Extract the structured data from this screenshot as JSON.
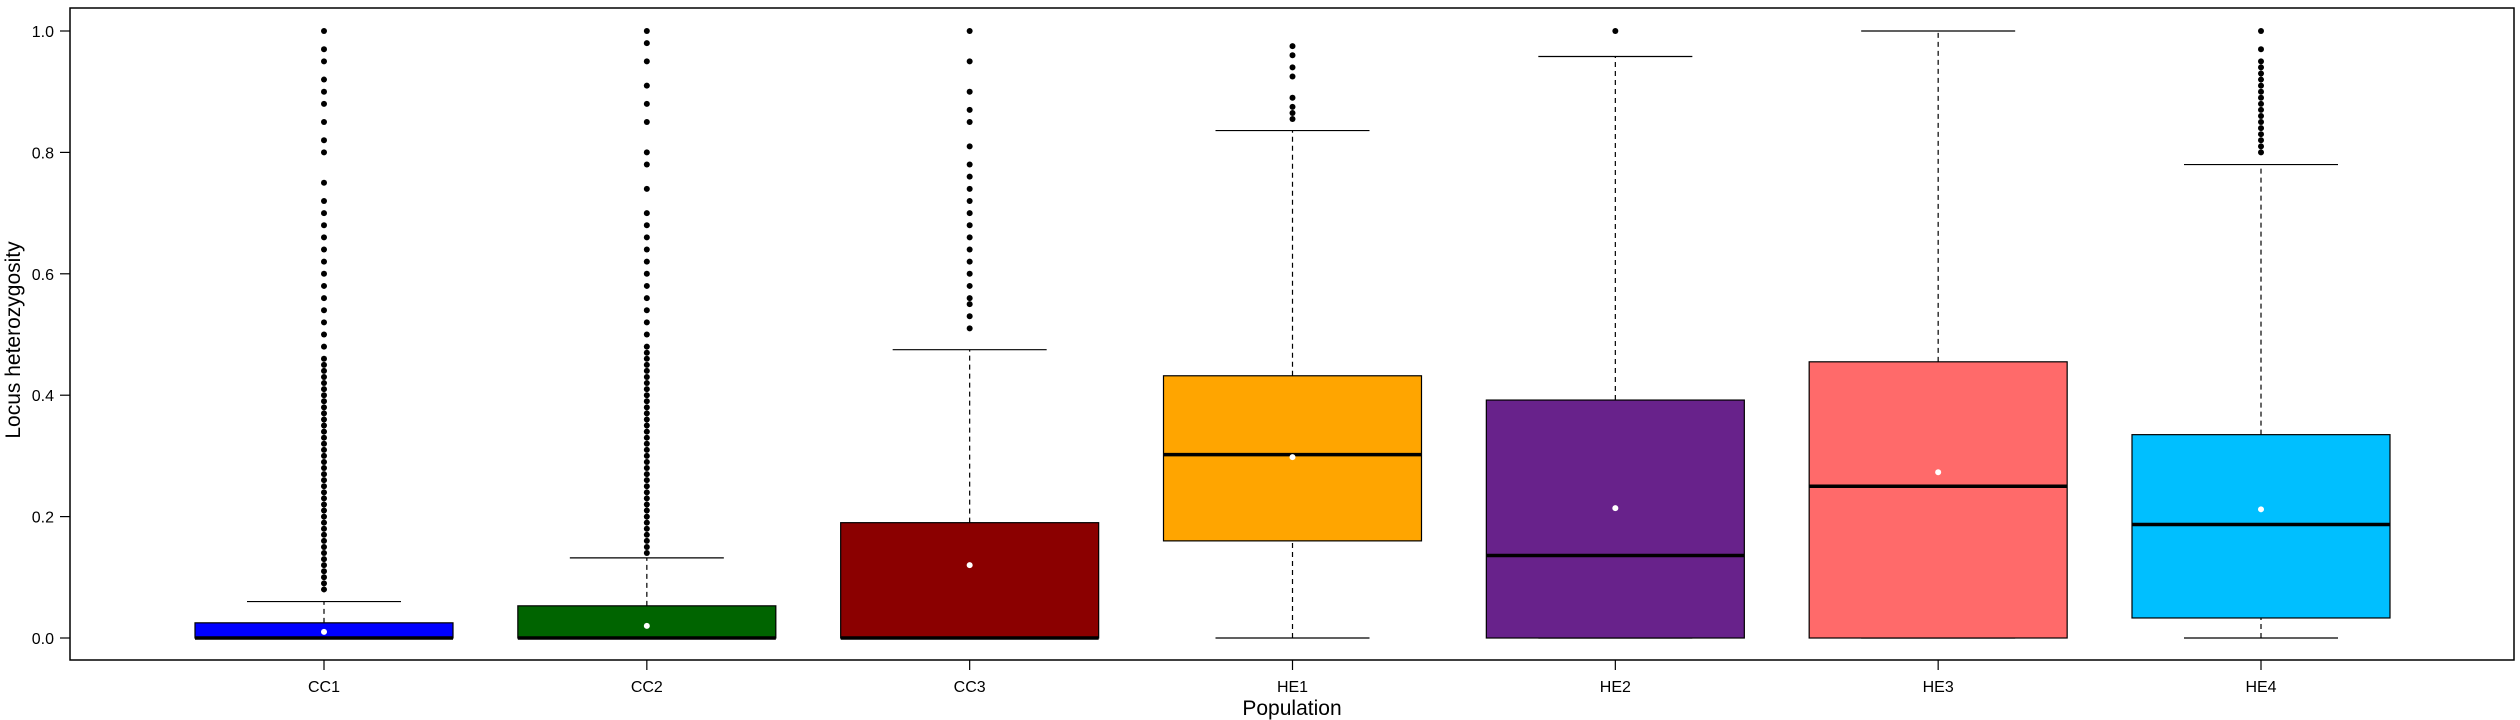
{
  "chart_data": {
    "type": "boxplot",
    "xlabel": "Population",
    "ylabel": "Locus heterozygosity",
    "ylim": [
      0,
      1
    ],
    "yticks": [
      "0.0",
      "0.2",
      "0.4",
      "0.6",
      "0.8",
      "1.0"
    ],
    "grid": false,
    "categories": [
      "CC1",
      "CC2",
      "CC3",
      "HE1",
      "HE2",
      "HE3",
      "HE4"
    ],
    "boxes": [
      {
        "name": "CC1",
        "color": "#0000ff",
        "whisker_low": 0.0,
        "q1": 0.0,
        "median": 0.0,
        "q3": 0.025,
        "whisker_high": 0.06,
        "mean": 0.01,
        "outliers": [
          0.08,
          0.09,
          0.1,
          0.11,
          0.12,
          0.13,
          0.14,
          0.15,
          0.16,
          0.17,
          0.18,
          0.19,
          0.2,
          0.21,
          0.22,
          0.23,
          0.24,
          0.25,
          0.26,
          0.27,
          0.28,
          0.29,
          0.3,
          0.31,
          0.32,
          0.33,
          0.34,
          0.35,
          0.36,
          0.37,
          0.38,
          0.39,
          0.4,
          0.41,
          0.42,
          0.43,
          0.44,
          0.45,
          0.46,
          0.48,
          0.5,
          0.52,
          0.54,
          0.56,
          0.58,
          0.6,
          0.62,
          0.64,
          0.66,
          0.68,
          0.7,
          0.72,
          0.75,
          0.8,
          0.82,
          0.85,
          0.88,
          0.9,
          0.92,
          0.95,
          0.97,
          1.0
        ]
      },
      {
        "name": "CC2",
        "color": "#006400",
        "whisker_low": 0.0,
        "q1": 0.0,
        "median": 0.0,
        "q3": 0.053,
        "whisker_high": 0.132,
        "mean": 0.02,
        "outliers": [
          0.14,
          0.15,
          0.16,
          0.17,
          0.18,
          0.19,
          0.2,
          0.21,
          0.22,
          0.23,
          0.24,
          0.25,
          0.26,
          0.27,
          0.28,
          0.29,
          0.3,
          0.31,
          0.32,
          0.33,
          0.34,
          0.35,
          0.36,
          0.37,
          0.38,
          0.39,
          0.4,
          0.41,
          0.42,
          0.43,
          0.44,
          0.45,
          0.46,
          0.47,
          0.48,
          0.5,
          0.52,
          0.54,
          0.56,
          0.58,
          0.6,
          0.62,
          0.64,
          0.66,
          0.68,
          0.7,
          0.74,
          0.78,
          0.8,
          0.85,
          0.88,
          0.91,
          0.95,
          0.98,
          1.0
        ]
      },
      {
        "name": "CC3",
        "color": "#8b0000",
        "whisker_low": 0.0,
        "q1": 0.0,
        "median": 0.0,
        "q3": 0.19,
        "whisker_high": 0.475,
        "mean": 0.12,
        "outliers": [
          0.51,
          0.53,
          0.55,
          0.56,
          0.58,
          0.6,
          0.62,
          0.64,
          0.66,
          0.68,
          0.7,
          0.72,
          0.74,
          0.76,
          0.78,
          0.81,
          0.85,
          0.87,
          0.9,
          0.95,
          1.0
        ]
      },
      {
        "name": "HE1",
        "color": "#ffa500",
        "whisker_low": 0.0,
        "q1": 0.16,
        "median": 0.302,
        "q3": 0.432,
        "whisker_high": 0.836,
        "mean": 0.298,
        "outliers": [
          0.855,
          0.865,
          0.875,
          0.89,
          0.925,
          0.94,
          0.96,
          0.975
        ]
      },
      {
        "name": "HE2",
        "color": "#68228b",
        "whisker_low": 0.0,
        "q1": 0.0,
        "median": 0.136,
        "q3": 0.392,
        "whisker_high": 0.958,
        "mean": 0.214,
        "outliers": [
          1.0
        ]
      },
      {
        "name": "HE3",
        "color": "#ff6a6a",
        "whisker_low": 0.0,
        "q1": 0.0,
        "median": 0.25,
        "q3": 0.455,
        "whisker_high": 1.0,
        "mean": 0.273,
        "outliers": []
      },
      {
        "name": "HE4",
        "color": "#00bfff",
        "whisker_low": 0.0,
        "q1": 0.033,
        "median": 0.187,
        "q3": 0.335,
        "whisker_high": 0.78,
        "mean": 0.212,
        "outliers": [
          0.8,
          0.81,
          0.82,
          0.83,
          0.84,
          0.85,
          0.86,
          0.87,
          0.88,
          0.89,
          0.9,
          0.91,
          0.92,
          0.93,
          0.94,
          0.95,
          0.97,
          1.0
        ]
      }
    ]
  }
}
